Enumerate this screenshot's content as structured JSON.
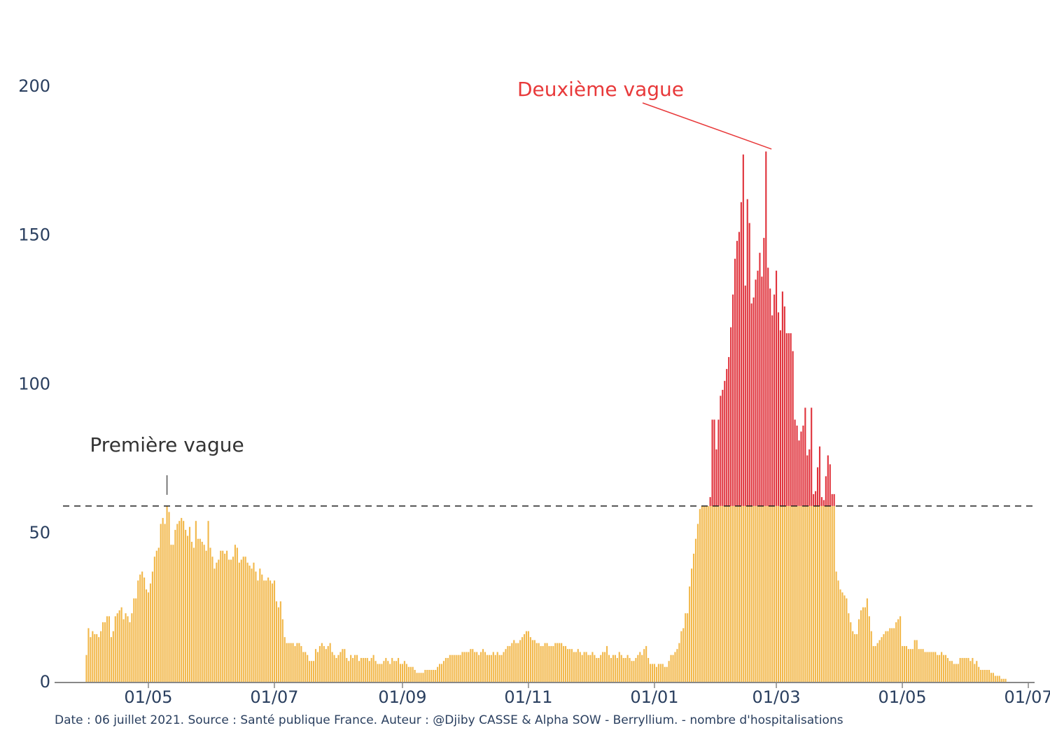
{
  "footer": "Date : 06 juillet 2021. Source : Santé publique France. Auteur : @Djiby CASSE & Alpha SOW - Berryllium. - nombre d'hospitalisations",
  "colors": {
    "base_bar": "#f2b84b",
    "excess_bar": "#e0333c",
    "annotation_red": "#e8393a",
    "annotation_dark": "#333333",
    "axis_text": "#2a3f5f",
    "axis_line": "#888888"
  },
  "chart_data": {
    "type": "bar",
    "title": "",
    "xlabel": "",
    "ylabel": "",
    "ylim": [
      0,
      210
    ],
    "y_ticks": [
      0,
      50,
      100,
      150,
      200
    ],
    "x_ticks": [
      {
        "date": "2020-05-01",
        "label": "01/05"
      },
      {
        "date": "2020-07-01",
        "label": "01/07"
      },
      {
        "date": "2020-09-01",
        "label": "01/09"
      },
      {
        "date": "2020-11-01",
        "label": "01/11"
      },
      {
        "date": "2021-01-01",
        "label": "01/01"
      },
      {
        "date": "2021-03-01",
        "label": "01/03"
      },
      {
        "date": "2021-05-01",
        "label": "01/05"
      },
      {
        "date": "2021-07-01",
        "label": "01/07"
      }
    ],
    "xlim": [
      "2020-03-17",
      "2021-07-08"
    ],
    "threshold": 59,
    "grid": false,
    "stacked": true,
    "series": [
      {
        "role": "below_threshold",
        "color": "#f2b84b"
      },
      {
        "role": "above_threshold",
        "color": "#e0333c"
      }
    ],
    "annotations": [
      {
        "text": "Première vague",
        "x": "2020-05-10",
        "y": 59,
        "color": "#333333"
      },
      {
        "text": "Deuxième vague",
        "x": "2021-02-27",
        "y": 180,
        "color": "#e8393a"
      }
    ],
    "daily": [
      {
        "start": "2020-04-01",
        "values": [
          9,
          18,
          15,
          17,
          16,
          16,
          15,
          17,
          20,
          20,
          22,
          22,
          15,
          17,
          22,
          23,
          24,
          25,
          21,
          23,
          22,
          20,
          23,
          28,
          28,
          34,
          36,
          37,
          35,
          31,
          30,
          33,
          37,
          42,
          44,
          45,
          53,
          55,
          53,
          59,
          57,
          46,
          46,
          51,
          53,
          54,
          55,
          54,
          51,
          49,
          52,
          47,
          45,
          54,
          48,
          48,
          47,
          46,
          44,
          54,
          45,
          42,
          38,
          40,
          41,
          44,
          44,
          43,
          44,
          41,
          41,
          42,
          46,
          45,
          40,
          41,
          42,
          42,
          40,
          39,
          38,
          40,
          37,
          34,
          38,
          36,
          34,
          34,
          35,
          34,
          33,
          34,
          27,
          25,
          27,
          21,
          15,
          13,
          13,
          13,
          13,
          12,
          13,
          13,
          12,
          10,
          10,
          9,
          7,
          7,
          7,
          11,
          10,
          12,
          13,
          12,
          11,
          12,
          13,
          10,
          9,
          8,
          9,
          10,
          11,
          11,
          8,
          7,
          9,
          8,
          9,
          9,
          7,
          8,
          8,
          8,
          8,
          7,
          8,
          9,
          7,
          6,
          6,
          6,
          7,
          8,
          7,
          6,
          8,
          7,
          7,
          8,
          6,
          6,
          7,
          6,
          5,
          5,
          5,
          4,
          3,
          3,
          3,
          3,
          4,
          4,
          4,
          4,
          4,
          4,
          5,
          6,
          6,
          7,
          8,
          8,
          9,
          9,
          9,
          9,
          9,
          9,
          10,
          10,
          10,
          10,
          11,
          11,
          10,
          10,
          9,
          10,
          11,
          10,
          9,
          9,
          9,
          10,
          9,
          10,
          9,
          9,
          10,
          11,
          12,
          12,
          13,
          14,
          13,
          13,
          14,
          15,
          16,
          17,
          17,
          15,
          14,
          14,
          13,
          13,
          12,
          12,
          13,
          13,
          12,
          12,
          12,
          13,
          13,
          13,
          13,
          12,
          12,
          11,
          11,
          11,
          10,
          10,
          11,
          10,
          9,
          10,
          10,
          9,
          9,
          10,
          9,
          8,
          8,
          9,
          10,
          10,
          12,
          9,
          8,
          9,
          9,
          8,
          10,
          9,
          8,
          8,
          9,
          8,
          7,
          7,
          8,
          9,
          10,
          9,
          11,
          12,
          8,
          6,
          6,
          6,
          5,
          6,
          6,
          6,
          5,
          5,
          7,
          9,
          9,
          10,
          11,
          13,
          17,
          18,
          23,
          23,
          32,
          38,
          43,
          48,
          53,
          58,
          59,
          59,
          59,
          59,
          59,
          59,
          59,
          59,
          59,
          59,
          59,
          59,
          59,
          59,
          59,
          59,
          59,
          59,
          59,
          59,
          59,
          59,
          59,
          59,
          59,
          59,
          59,
          59,
          59,
          59,
          59,
          59,
          59,
          59,
          59,
          59,
          59,
          59,
          59,
          59,
          59,
          59,
          59,
          59,
          59,
          59,
          59,
          59,
          59,
          59,
          59,
          59,
          59,
          59,
          59,
          59,
          59,
          59,
          59,
          59,
          59,
          59,
          59,
          59,
          59,
          37,
          34,
          31,
          30,
          29,
          28,
          23,
          20,
          17,
          16,
          16,
          21,
          24,
          25,
          25,
          28,
          22,
          17,
          12,
          12,
          13,
          14,
          15,
          16,
          17,
          17,
          18,
          18,
          18,
          20,
          21,
          22,
          12,
          12,
          12,
          11,
          11,
          11,
          14,
          14,
          11,
          11,
          11,
          10,
          10,
          10,
          10,
          10,
          10,
          9,
          9,
          10,
          9,
          9,
          8,
          7,
          7,
          6,
          6,
          6,
          8,
          8,
          8,
          8,
          8,
          7,
          8,
          6,
          7,
          5,
          4,
          4,
          4,
          4,
          4,
          3,
          3,
          2,
          2,
          2,
          1,
          1,
          1
        ]
      },
      {
        "start": "2021-01-28",
        "excess": [
          3,
          29,
          29,
          19,
          29,
          37,
          39,
          42,
          46,
          50,
          60,
          71,
          83,
          89,
          92,
          102,
          118,
          74,
          103,
          95,
          68,
          70,
          76,
          79,
          85,
          77,
          90,
          119,
          80,
          73,
          64,
          71,
          79,
          65,
          59,
          72,
          67,
          58,
          58,
          58,
          52,
          29,
          27,
          22,
          25,
          27,
          33,
          17,
          19,
          33,
          4,
          5,
          13,
          20,
          3,
          2,
          10,
          17,
          14,
          4,
          4
        ]
      }
    ]
  }
}
